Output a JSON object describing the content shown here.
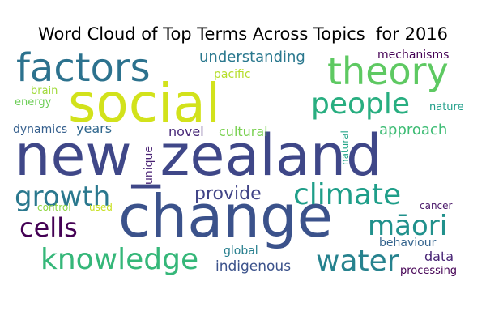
{
  "chart_data": {
    "type": "word_cloud",
    "title": "Word Cloud of Top Terms Across Topics  for 2016",
    "words": [
      {
        "text": "new_zealand",
        "color": "#3f4788"
      },
      {
        "text": "change",
        "color": "#3b528b"
      },
      {
        "text": "social",
        "color": "#d2e21b"
      },
      {
        "text": "factors",
        "color": "#2c728e"
      },
      {
        "text": "theory",
        "color": "#5ec962"
      },
      {
        "text": "people",
        "color": "#28ae80"
      },
      {
        "text": "climate",
        "color": "#1f9e89"
      },
      {
        "text": "knowledge",
        "color": "#35b779"
      },
      {
        "text": "water",
        "color": "#26828e"
      },
      {
        "text": "growth",
        "color": "#2a788e"
      },
      {
        "text": "māori",
        "color": "#21918c"
      },
      {
        "text": "cells",
        "color": "#440154"
      },
      {
        "text": "provide",
        "color": "#414487"
      },
      {
        "text": "understanding",
        "color": "#2a788e"
      },
      {
        "text": "approach",
        "color": "#3dbc74"
      },
      {
        "text": "novel",
        "color": "#482878"
      },
      {
        "text": "cultural",
        "color": "#7ad151"
      },
      {
        "text": "years",
        "color": "#31688e"
      },
      {
        "text": "dynamics",
        "color": "#355f8d"
      },
      {
        "text": "pacific",
        "color": "#b5de2b"
      },
      {
        "text": "mechanisms",
        "color": "#440154"
      },
      {
        "text": "brain",
        "color": "#a0da39"
      },
      {
        "text": "energy",
        "color": "#6ece58"
      },
      {
        "text": "nature",
        "color": "#1f9e89"
      },
      {
        "text": "unique",
        "color": "#482173"
      },
      {
        "text": "natural",
        "color": "#20a486"
      },
      {
        "text": "indigenous",
        "color": "#3b528b"
      },
      {
        "text": "global",
        "color": "#277f8e"
      },
      {
        "text": "data",
        "color": "#482475"
      },
      {
        "text": "behaviour",
        "color": "#33638d"
      },
      {
        "text": "processing",
        "color": "#440154"
      },
      {
        "text": "cancer",
        "color": "#481668"
      },
      {
        "text": "control",
        "color": "#8fd744"
      },
      {
        "text": "used",
        "color": "#c8e020"
      }
    ]
  }
}
